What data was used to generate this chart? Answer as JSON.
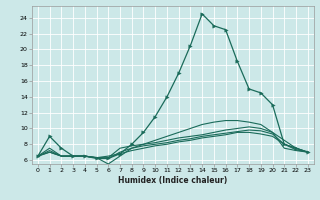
{
  "xlabel": "Humidex (Indice chaleur)",
  "bg_color": "#cce8e8",
  "grid_color": "#b0d8d8",
  "line_color": "#1a6b5a",
  "xlim": [
    -0.5,
    23.5
  ],
  "ylim": [
    5.5,
    25.5
  ],
  "xticks": [
    0,
    1,
    2,
    3,
    4,
    5,
    6,
    7,
    8,
    9,
    10,
    11,
    12,
    13,
    14,
    15,
    16,
    17,
    18,
    19,
    20,
    21,
    22,
    23
  ],
  "yticks": [
    6,
    8,
    10,
    12,
    14,
    16,
    18,
    20,
    22,
    24
  ],
  "curves": [
    {
      "x": [
        0,
        1,
        2,
        3,
        4,
        5,
        6,
        7,
        8,
        9,
        10,
        11,
        12,
        13,
        14,
        15,
        16,
        17,
        18,
        19,
        20,
        21,
        22,
        23
      ],
      "y": [
        6.5,
        9.0,
        7.5,
        6.5,
        6.5,
        6.2,
        6.2,
        6.8,
        8.0,
        9.5,
        11.5,
        14.0,
        17.0,
        20.5,
        24.5,
        23.0,
        22.5,
        18.5,
        15.0,
        14.5,
        13.0,
        8.0,
        7.5,
        7.0
      ],
      "has_markers": true
    },
    {
      "x": [
        0,
        1,
        2,
        3,
        4,
        5,
        6,
        7,
        8,
        9,
        10,
        11,
        12,
        13,
        14,
        15,
        16,
        17,
        18,
        19,
        20,
        21,
        22,
        23
      ],
      "y": [
        6.5,
        7.0,
        6.5,
        6.5,
        6.5,
        6.3,
        5.5,
        6.5,
        7.5,
        8.0,
        8.5,
        9.0,
        9.5,
        10.0,
        10.5,
        10.8,
        11.0,
        11.0,
        10.8,
        10.5,
        9.5,
        7.5,
        7.2,
        7.0
      ],
      "has_markers": false
    },
    {
      "x": [
        0,
        1,
        2,
        3,
        4,
        5,
        6,
        7,
        8,
        9,
        10,
        11,
        12,
        13,
        14,
        15,
        16,
        17,
        18,
        19,
        20,
        21,
        22,
        23
      ],
      "y": [
        6.5,
        7.2,
        6.5,
        6.5,
        6.5,
        6.3,
        6.3,
        7.5,
        7.8,
        8.0,
        8.2,
        8.5,
        8.8,
        9.0,
        9.2,
        9.5,
        9.8,
        10.0,
        10.2,
        10.0,
        9.5,
        8.5,
        7.5,
        7.0
      ],
      "has_markers": false
    },
    {
      "x": [
        0,
        1,
        2,
        3,
        4,
        5,
        6,
        7,
        8,
        9,
        10,
        11,
        12,
        13,
        14,
        15,
        16,
        17,
        18,
        19,
        20,
        21,
        22,
        23
      ],
      "y": [
        6.5,
        7.0,
        6.5,
        6.5,
        6.5,
        6.3,
        6.2,
        7.0,
        7.5,
        7.8,
        8.0,
        8.2,
        8.5,
        8.7,
        9.0,
        9.2,
        9.4,
        9.6,
        9.8,
        9.7,
        9.3,
        8.0,
        7.3,
        7.0
      ],
      "has_markers": false
    },
    {
      "x": [
        0,
        1,
        2,
        3,
        4,
        5,
        6,
        7,
        8,
        9,
        10,
        11,
        12,
        13,
        14,
        15,
        16,
        17,
        18,
        19,
        20,
        21,
        22,
        23
      ],
      "y": [
        6.5,
        7.5,
        6.5,
        6.5,
        6.5,
        6.3,
        6.5,
        6.8,
        7.2,
        7.5,
        7.8,
        8.0,
        8.3,
        8.5,
        8.8,
        9.0,
        9.2,
        9.5,
        9.5,
        9.3,
        9.0,
        8.0,
        7.5,
        7.0
      ],
      "has_markers": false
    }
  ]
}
